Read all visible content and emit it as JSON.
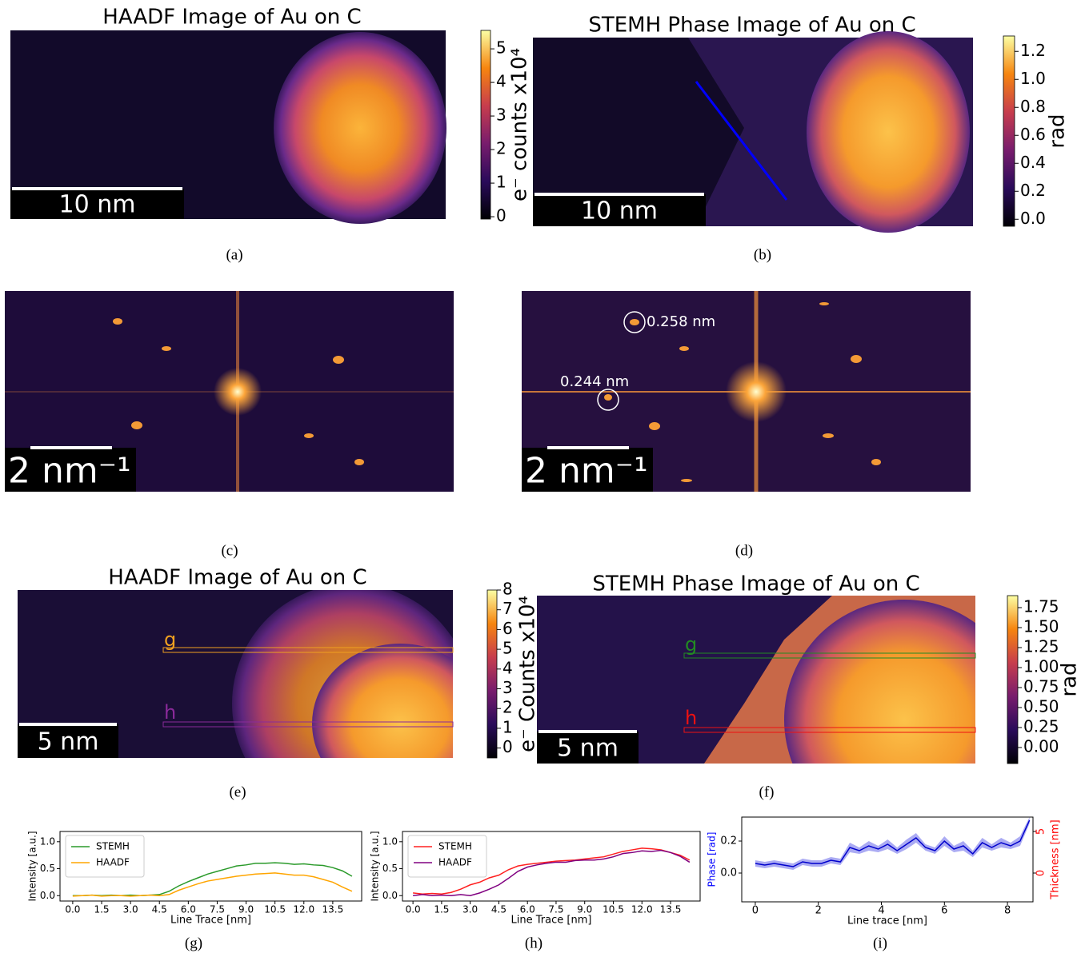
{
  "images": [
    {
      "caption": "(a)",
      "title": "HAADF Image of Au on C",
      "scalebar": "10 nm",
      "colorbar": {
        "label": "e⁻ counts x10⁴",
        "ylim": [
          -0.07,
          5.55
        ],
        "yticks": [
          0,
          1,
          2,
          3,
          4,
          5
        ]
      }
    },
    {
      "caption": "(b)",
      "title": "STEMH Phase Image of Au on C",
      "scalebar": "10 nm",
      "colorbar": {
        "label": "rad",
        "ylim": [
          -0.05,
          1.31
        ],
        "yticks": [
          {
            "value": 0,
            "label": "0.0"
          },
          {
            "value": 0.2,
            "label": "0.2"
          },
          {
            "value": 0.4,
            "label": "0.4"
          },
          {
            "value": 0.6,
            "label": "0.6"
          },
          {
            "value": 0.8,
            "label": "0.8"
          },
          {
            "value": 1,
            "label": "1.0"
          },
          {
            "value": 1.2,
            "label": "1.2"
          }
        ]
      }
    },
    {
      "caption": "(c)",
      "scalebar": "2 nm⁻¹"
    },
    {
      "caption": "(d)",
      "scalebar": "2 nm⁻¹",
      "annotations": [
        "0.258 nm",
        "0.244 nm"
      ]
    },
    {
      "caption": "(e)",
      "title": "HAADF Image of Au on C",
      "scalebar": "5 nm",
      "line_labels": [
        {
          "text": "g",
          "color": "#f0a020"
        },
        {
          "text": "h",
          "color": "#8a2a9a"
        }
      ],
      "colorbar": {
        "label": "e⁻ Counts x10⁴",
        "ylim": [
          -0.5,
          8
        ],
        "yticks": [
          0,
          1,
          2,
          3,
          4,
          5,
          6,
          7,
          8
        ]
      }
    },
    {
      "caption": "(f)",
      "title": "STEMH Phase Image of Au on C",
      "scalebar": "5 nm",
      "line_labels": [
        {
          "text": "g",
          "color": "#228b22"
        },
        {
          "text": "h",
          "color": "#ee1111"
        }
      ],
      "colorbar": {
        "label": "rad",
        "ylim": [
          -0.2,
          1.9
        ],
        "yticks": [
          {
            "value": 0,
            "label": "0.00"
          },
          {
            "value": 0.25,
            "label": "0.25"
          },
          {
            "value": 0.5,
            "label": "0.50"
          },
          {
            "value": 0.75,
            "label": "0.75"
          },
          {
            "value": 1,
            "label": "1.00"
          },
          {
            "value": 1.25,
            "label": "1.25"
          },
          {
            "value": 1.5,
            "label": "1.50"
          },
          {
            "value": 1.75,
            "label": "1.75"
          }
        ]
      }
    }
  ],
  "chart_data": [
    {
      "type": "line",
      "caption": "(g)",
      "xlabel": "Line Trace [nm]",
      "ylabel": "Intensity [a.u.]",
      "legend": "upper left",
      "xlim": [
        -0.66,
        15
      ],
      "ylim": [
        -0.1,
        1.19
      ],
      "xticks": [
        {
          "value": 0,
          "label": "0.0"
        },
        {
          "value": 1.5,
          "label": "1.5"
        },
        {
          "value": 3,
          "label": "3.0"
        },
        {
          "value": 4.5,
          "label": "4.5"
        },
        {
          "value": 6,
          "label": "6.0"
        },
        {
          "value": 7.5,
          "label": "7.5"
        },
        {
          "value": 9,
          "label": "9.0"
        },
        {
          "value": 10.5,
          "label": "10.5"
        },
        {
          "value": 12,
          "label": "12.0"
        },
        {
          "value": 13.5,
          "label": "13.5"
        }
      ],
      "yticks": [
        {
          "value": 0,
          "label": "0.0"
        },
        {
          "value": 0.5,
          "label": "0.5"
        },
        {
          "value": 1,
          "label": "1.0"
        }
      ],
      "x": [
        0,
        0.5,
        1,
        1.5,
        2,
        2.5,
        3,
        3.5,
        4,
        4.5,
        5,
        5.5,
        6,
        6.5,
        7,
        7.5,
        8,
        8.5,
        9,
        9.5,
        10,
        10.5,
        11,
        11.5,
        12,
        12.5,
        13,
        13.5,
        14,
        14.5
      ],
      "series": [
        {
          "name": "STEMH",
          "color": "#2a9a2a",
          "values": [
            0.0,
            0.0,
            0.01,
            0.0,
            0.01,
            0.0,
            0.01,
            0.0,
            0.01,
            0.02,
            0.08,
            0.18,
            0.26,
            0.33,
            0.4,
            0.45,
            0.5,
            0.55,
            0.57,
            0.6,
            0.6,
            0.61,
            0.6,
            0.58,
            0.59,
            0.57,
            0.56,
            0.52,
            0.46,
            0.36
          ]
        },
        {
          "name": "HAADF",
          "color": "#ffa500",
          "values": [
            -0.01,
            0.0,
            0.01,
            -0.01,
            0.0,
            0.0,
            -0.01,
            0.0,
            0.01,
            0.0,
            0.02,
            0.1,
            0.16,
            0.22,
            0.27,
            0.3,
            0.33,
            0.36,
            0.38,
            0.4,
            0.41,
            0.42,
            0.4,
            0.38,
            0.38,
            0.35,
            0.3,
            0.25,
            0.16,
            0.08
          ]
        }
      ]
    },
    {
      "type": "line",
      "caption": "(h)",
      "xlabel": "Line Trace [nm]",
      "ylabel": "Intensity [a.u.]",
      "legend": "upper left",
      "xlim": [
        -0.55,
        15.05
      ],
      "ylim": [
        -0.1,
        1.19
      ],
      "xticks": [
        {
          "value": 0,
          "label": "0.0"
        },
        {
          "value": 1.5,
          "label": "1.5"
        },
        {
          "value": 3,
          "label": "3.0"
        },
        {
          "value": 4.5,
          "label": "4.5"
        },
        {
          "value": 6,
          "label": "6.0"
        },
        {
          "value": 7.5,
          "label": "7.5"
        },
        {
          "value": 9,
          "label": "9.0"
        },
        {
          "value": 10.5,
          "label": "10.5"
        },
        {
          "value": 12,
          "label": "12.0"
        },
        {
          "value": 13.5,
          "label": "13.5"
        }
      ],
      "yticks": [
        {
          "value": 0,
          "label": "0.0"
        },
        {
          "value": 0.5,
          "label": "0.5"
        },
        {
          "value": 1,
          "label": "1.0"
        }
      ],
      "x": [
        0,
        0.5,
        1,
        1.5,
        2,
        2.5,
        3,
        3.5,
        4,
        4.5,
        5,
        5.5,
        6,
        6.5,
        7,
        7.5,
        8,
        8.5,
        9,
        9.5,
        10,
        10.5,
        11,
        11.5,
        12,
        12.5,
        13,
        13.5,
        14,
        14.5
      ],
      "series": [
        {
          "name": "STEMH",
          "color": "#ff2020",
          "values": [
            0.05,
            0.03,
            0.04,
            0.03,
            0.06,
            0.12,
            0.2,
            0.25,
            0.33,
            0.38,
            0.48,
            0.55,
            0.58,
            0.6,
            0.62,
            0.64,
            0.65,
            0.66,
            0.68,
            0.7,
            0.72,
            0.77,
            0.82,
            0.85,
            0.88,
            0.87,
            0.85,
            0.8,
            0.75,
            0.66
          ]
        },
        {
          "name": "HAADF",
          "color": "#800080",
          "values": [
            0.0,
            0.02,
            0.0,
            0.01,
            0.0,
            0.02,
            0.0,
            0.05,
            0.12,
            0.2,
            0.32,
            0.45,
            0.53,
            0.57,
            0.6,
            0.62,
            0.62,
            0.65,
            0.66,
            0.66,
            0.68,
            0.72,
            0.78,
            0.8,
            0.83,
            0.82,
            0.84,
            0.8,
            0.73,
            0.62
          ]
        }
      ]
    },
    {
      "type": "line",
      "caption": "(i)",
      "xlabel": "Line trace [nm]",
      "ylabel": "Phase [rad]",
      "ylabel_color": "#0000ff",
      "y2label": "Thickness [nm]",
      "y2label_color": "#ff0000",
      "xlim": [
        -0.43,
        8.81
      ],
      "ylim": [
        -0.18,
        0.35
      ],
      "y2lim": [
        -3.46,
        6.73
      ],
      "xticks": [
        0,
        2,
        4,
        6,
        8
      ],
      "yticks": [
        {
          "value": 0,
          "label": "0.0"
        },
        {
          "value": 0.2,
          "label": "0.2"
        }
      ],
      "y2ticks": [
        0,
        5
      ],
      "x": [
        0,
        0.3,
        0.6,
        0.9,
        1.2,
        1.5,
        1.8,
        2.1,
        2.4,
        2.7,
        3,
        3.3,
        3.6,
        3.9,
        4.2,
        4.5,
        4.8,
        5.1,
        5.4,
        5.7,
        6,
        6.3,
        6.6,
        6.9,
        7.2,
        7.5,
        7.8,
        8.1,
        8.4,
        8.7
      ],
      "series": [
        {
          "color": "#0000cc",
          "band_color": "#8888ee",
          "values": [
            0.06,
            0.05,
            0.06,
            0.05,
            0.04,
            0.07,
            0.06,
            0.06,
            0.08,
            0.07,
            0.16,
            0.14,
            0.17,
            0.15,
            0.18,
            0.14,
            0.18,
            0.22,
            0.16,
            0.14,
            0.2,
            0.15,
            0.17,
            0.12,
            0.19,
            0.16,
            0.19,
            0.17,
            0.2,
            0.33
          ],
          "errors": [
            0.02,
            0.02,
            0.02,
            0.02,
            0.02,
            0.02,
            0.02,
            0.02,
            0.02,
            0.02,
            0.03,
            0.02,
            0.03,
            0.02,
            0.03,
            0.02,
            0.03,
            0.03,
            0.02,
            0.02,
            0.03,
            0.02,
            0.03,
            0.02,
            0.03,
            0.02,
            0.03,
            0.02,
            0.03,
            0.02
          ]
        }
      ]
    }
  ]
}
